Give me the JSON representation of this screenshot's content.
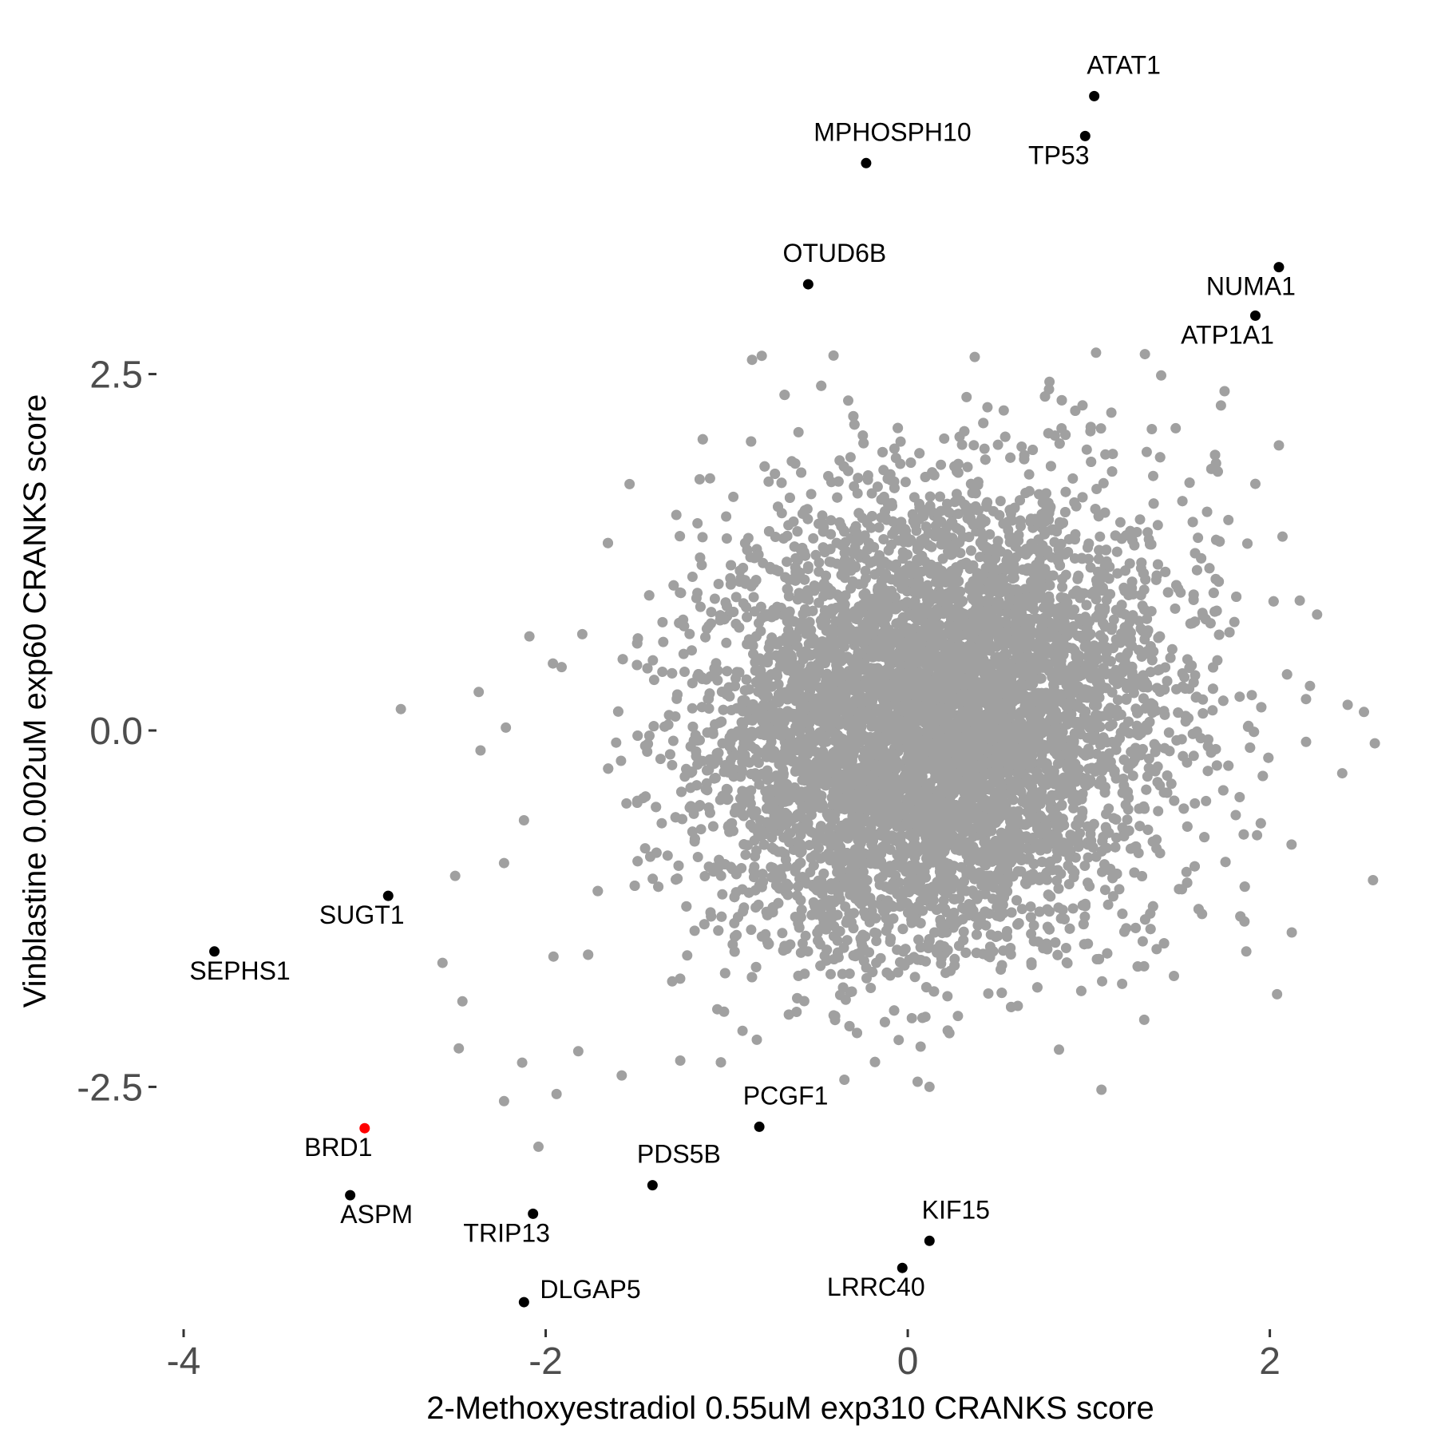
{
  "chart_data": {
    "type": "scatter",
    "xlabel": "2-Methoxyestradiol 0.55uM exp310 CRANKS score",
    "ylabel": "Vinblastine 0.002uM exp60 CRANKS score",
    "xlim": [
      -4.15,
      2.65
    ],
    "ylim": [
      -4.2,
      4.9
    ],
    "x_ticks": [
      {
        "value": -4,
        "label": "-4"
      },
      {
        "value": -2,
        "label": "-2"
      },
      {
        "value": 0,
        "label": "0"
      },
      {
        "value": 2,
        "label": "2"
      }
    ],
    "y_ticks": [
      {
        "value": -2.5,
        "label": "-2.5"
      },
      {
        "value": 0,
        "label": "0.0"
      },
      {
        "value": 2.5,
        "label": "2.5"
      }
    ],
    "grid": false,
    "colors": {
      "background": "#ffffff",
      "point": "#a0a0a0",
      "highlight": "#000000",
      "special": "#ff0000"
    },
    "background_cloud": {
      "n": 9000,
      "x_mean": 0.15,
      "x_sd": 0.62,
      "y_mean": 0.05,
      "y_sd": 0.78,
      "correlation": 0.12,
      "color": "#a0a0a0"
    },
    "outlier_points": [
      {
        "x": -2.8,
        "y": 0.15
      },
      {
        "x": -2.37,
        "y": 0.27
      },
      {
        "x": -2.36,
        "y": -0.14
      },
      {
        "x": -2.22,
        "y": 0.02
      },
      {
        "x": -2.09,
        "y": 0.66
      },
      {
        "x": -1.96,
        "y": 0.47
      },
      {
        "x": -2.5,
        "y": -1.02
      },
      {
        "x": -2.23,
        "y": -0.93
      },
      {
        "x": -2.12,
        "y": -0.63
      },
      {
        "x": -2.57,
        "y": -1.63
      },
      {
        "x": -2.46,
        "y": -1.9
      },
      {
        "x": -2.48,
        "y": -2.23
      },
      {
        "x": -2.13,
        "y": -2.33
      },
      {
        "x": -2.23,
        "y": -2.6
      },
      {
        "x": -1.94,
        "y": -2.55
      },
      {
        "x": -2.04,
        "y": -2.92
      },
      {
        "x": -1.82,
        "y": -2.25
      },
      {
        "x": -1.58,
        "y": -2.42
      },
      {
        "x": -0.86,
        "y": 2.6
      },
      {
        "x": -0.41,
        "y": 2.63
      },
      {
        "x": 0.37,
        "y": 2.62
      },
      {
        "x": 1.04,
        "y": 2.65
      },
      {
        "x": 1.31,
        "y": 2.64
      },
      {
        "x": 1.75,
        "y": 2.38
      },
      {
        "x": 1.73,
        "y": 2.28
      },
      {
        "x": 1.48,
        "y": 2.12
      },
      {
        "x": 2.05,
        "y": 2.0
      },
      {
        "x": 1.92,
        "y": 1.73
      },
      {
        "x": 2.07,
        "y": 1.36
      },
      {
        "x": 2.2,
        "y": 0.22
      },
      {
        "x": 2.43,
        "y": 0.18
      },
      {
        "x": 2.52,
        "y": 0.13
      },
      {
        "x": 2.58,
        "y": -0.09
      },
      {
        "x": 2.4,
        "y": -0.3
      },
      {
        "x": 2.57,
        "y": -1.05
      },
      {
        "x": 2.12,
        "y": -0.8
      },
      {
        "x": 1.86,
        "y": -1.34
      },
      {
        "x": 1.87,
        "y": -1.55
      },
      {
        "x": 2.04,
        "y": -1.85
      },
      {
        "x": 1.07,
        "y": -2.52
      },
      {
        "x": 0.12,
        "y": -2.5
      },
      {
        "x": -0.35,
        "y": -2.45
      }
    ],
    "labeled_points": [
      {
        "name": "ATAT1",
        "x": 1.03,
        "y": 4.45,
        "color": "#000000"
      },
      {
        "name": "TP53",
        "x": 0.98,
        "y": 4.17,
        "color": "#000000"
      },
      {
        "name": "MPHOSPH10",
        "x": -0.23,
        "y": 3.98,
        "color": "#000000"
      },
      {
        "name": "OTUD6B",
        "x": -0.55,
        "y": 3.13,
        "color": "#000000"
      },
      {
        "name": "NUMA1",
        "x": 2.05,
        "y": 3.25,
        "color": "#000000"
      },
      {
        "name": "ATP1A1",
        "x": 1.92,
        "y": 2.91,
        "color": "#000000"
      },
      {
        "name": "SUGT1",
        "x": -2.87,
        "y": -1.16,
        "color": "#000000"
      },
      {
        "name": "SEPHS1",
        "x": -3.83,
        "y": -1.55,
        "color": "#000000"
      },
      {
        "name": "BRD1",
        "x": -3.0,
        "y": -2.79,
        "color": "#ff0000"
      },
      {
        "name": "PCGF1",
        "x": -0.82,
        "y": -2.78,
        "color": "#000000"
      },
      {
        "name": "PDS5B",
        "x": -1.41,
        "y": -3.19,
        "color": "#000000"
      },
      {
        "name": "ASPM",
        "x": -3.08,
        "y": -3.26,
        "color": "#000000"
      },
      {
        "name": "TRIP13",
        "x": -2.07,
        "y": -3.39,
        "color": "#000000"
      },
      {
        "name": "KIF15",
        "x": 0.12,
        "y": -3.58,
        "color": "#000000"
      },
      {
        "name": "LRRC40",
        "x": -0.03,
        "y": -3.77,
        "color": "#000000"
      },
      {
        "name": "DLGAP5",
        "x": -2.12,
        "y": -4.01,
        "color": "#000000"
      }
    ]
  }
}
